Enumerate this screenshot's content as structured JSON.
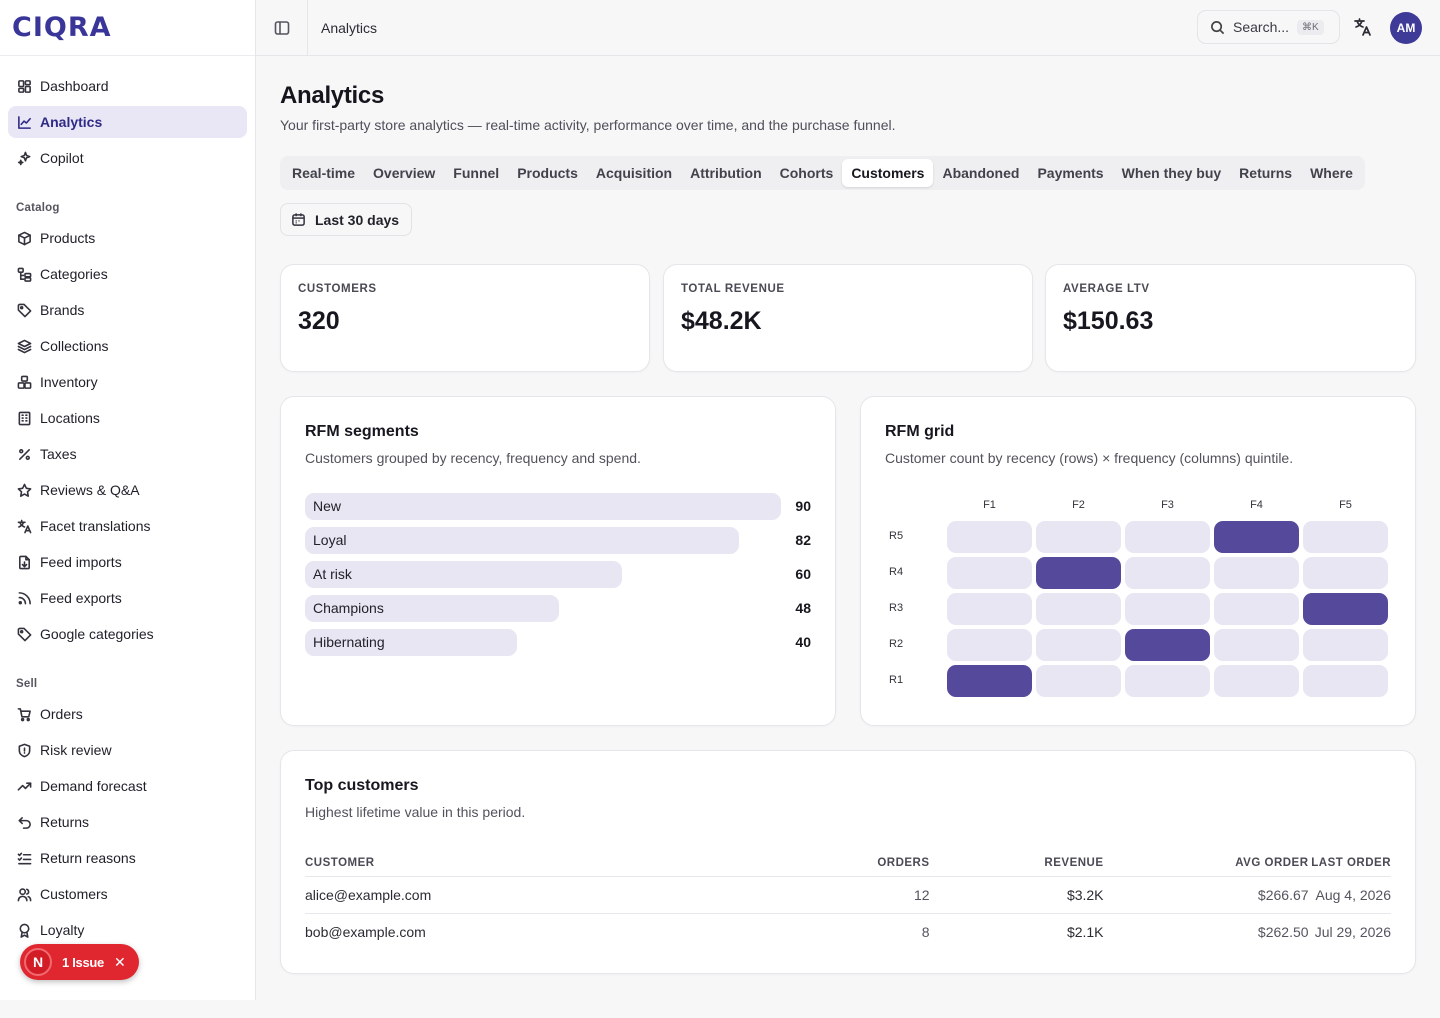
{
  "brand": {
    "name": "CIQRA"
  },
  "sidebar": {
    "top_items": [
      {
        "label": "Dashboard",
        "icon": "dashboard-icon"
      },
      {
        "label": "Analytics",
        "icon": "analytics-icon",
        "active": true
      },
      {
        "label": "Copilot",
        "icon": "sparkles-icon"
      }
    ],
    "catalog_label": "Catalog",
    "catalog_items": [
      {
        "label": "Products",
        "icon": "box-icon"
      },
      {
        "label": "Categories",
        "icon": "tree-icon"
      },
      {
        "label": "Brands",
        "icon": "tag-icon"
      },
      {
        "label": "Collections",
        "icon": "layers-icon"
      },
      {
        "label": "Inventory",
        "icon": "boxes-icon"
      },
      {
        "label": "Locations",
        "icon": "building-icon"
      },
      {
        "label": "Taxes",
        "icon": "percent-icon"
      },
      {
        "label": "Reviews & Q&A",
        "icon": "star-icon"
      },
      {
        "label": "Facet translations",
        "icon": "translate-icon"
      },
      {
        "label": "Feed imports",
        "icon": "file-import-icon"
      },
      {
        "label": "Feed exports",
        "icon": "rss-icon"
      },
      {
        "label": "Google categories",
        "icon": "tag-icon"
      }
    ],
    "sell_label": "Sell",
    "sell_items": [
      {
        "label": "Orders",
        "icon": "cart-icon"
      },
      {
        "label": "Risk review",
        "icon": "shield-icon"
      },
      {
        "label": "Demand forecast",
        "icon": "trend-icon"
      },
      {
        "label": "Returns",
        "icon": "undo-icon"
      },
      {
        "label": "Return reasons",
        "icon": "list-check-icon"
      },
      {
        "label": "Customers",
        "icon": "users-icon"
      },
      {
        "label": "Loyalty",
        "icon": "award-icon"
      }
    ]
  },
  "issue_badge": {
    "logo": "N",
    "text": "1 Issue"
  },
  "topbar": {
    "breadcrumb": "Analytics",
    "search_placeholder": "Search...",
    "search_shortcut": "⌘K",
    "avatar_initials": "AM"
  },
  "page": {
    "title": "Analytics",
    "subtitle": "Your first-party store analytics — real-time activity, performance over time, and the purchase funnel.",
    "tabs": [
      "Real-time",
      "Overview",
      "Funnel",
      "Products",
      "Acquisition",
      "Attribution",
      "Cohorts",
      "Customers",
      "Abandoned",
      "Payments",
      "When they buy",
      "Returns",
      "Where"
    ],
    "active_tab": "Customers",
    "date_range": "Last 30 days"
  },
  "stats": [
    {
      "label": "CUSTOMERS",
      "value": "320"
    },
    {
      "label": "TOTAL REVENUE",
      "value": "$48.2K"
    },
    {
      "label": "AVERAGE LTV",
      "value": "$150.63"
    }
  ],
  "rfm_segments": {
    "title": "RFM segments",
    "subtitle": "Customers grouped by recency, frequency and spend.",
    "items": [
      {
        "name": "New",
        "value": 90
      },
      {
        "name": "Loyal",
        "value": 82
      },
      {
        "name": "At risk",
        "value": 60
      },
      {
        "name": "Champions",
        "value": 48
      },
      {
        "name": "Hibernating",
        "value": 40
      }
    ]
  },
  "rfm_grid": {
    "title": "RFM grid",
    "subtitle": "Customer count by recency (rows) × frequency (columns) quintile.",
    "columns": [
      "F1",
      "F2",
      "F3",
      "F4",
      "F5"
    ],
    "rows": [
      "R5",
      "R4",
      "R3",
      "R2",
      "R1"
    ],
    "highlight": [
      [
        0,
        0,
        0,
        1,
        0
      ],
      [
        0,
        1,
        0,
        0,
        0
      ],
      [
        0,
        0,
        0,
        0,
        1
      ],
      [
        0,
        0,
        1,
        0,
        0
      ],
      [
        1,
        0,
        0,
        0,
        0
      ]
    ],
    "colors": {
      "hot": "#54499a",
      "cool": "#e8e6f2"
    }
  },
  "top_customers": {
    "title": "Top customers",
    "subtitle": "Highest lifetime value in this period.",
    "columns": [
      "CUSTOMER",
      "ORDERS",
      "REVENUE",
      "AVG ORDER",
      "LAST ORDER"
    ],
    "rows": [
      [
        "alice@example.com",
        "12",
        "$3.2K",
        "$266.67",
        "Aug 4, 2026"
      ],
      [
        "bob@example.com",
        "8",
        "$2.1K",
        "$262.50",
        "Jul 29, 2026"
      ]
    ]
  }
}
